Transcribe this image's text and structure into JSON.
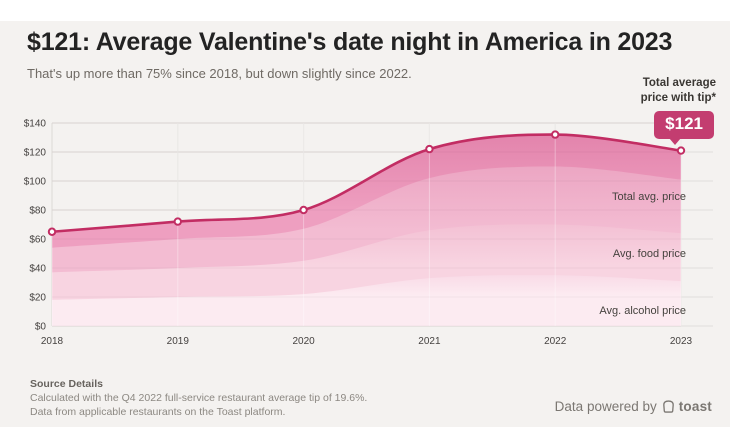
{
  "header": {
    "title": "$121: Average Valentine's date night in America in 2023",
    "subtitle": "That's up more than 75% since 2018, but down slightly since 2022.",
    "callout_label": "Total average price with tip*",
    "callout_value": "$121"
  },
  "chart_data": {
    "type": "area",
    "x": [
      "2018",
      "2019",
      "2020",
      "2021",
      "2022",
      "2023"
    ],
    "series": [
      {
        "name": "Total average price with tip",
        "values": [
          65,
          72,
          80,
          122,
          132,
          121
        ],
        "markers": true
      },
      {
        "name": "Total avg. price",
        "values": [
          54,
          60,
          67,
          102,
          110,
          101
        ]
      },
      {
        "name": "Avg. food price",
        "values": [
          37,
          40,
          45,
          66,
          70,
          64
        ]
      },
      {
        "name": "Avg. alcohol price",
        "values": [
          18,
          20,
          22,
          33,
          35,
          31
        ]
      }
    ],
    "title": "$121: Average Valentine's date night in America in 2023",
    "xlabel": "",
    "ylabel": "",
    "ylim": [
      0,
      140
    ],
    "ytick_step": 20,
    "ytick_prefix": "$",
    "grid": true,
    "legend_position": "inside-right"
  },
  "colors": {
    "accent_line": "#c22d63",
    "badge": "#c33d70",
    "card_background": "#f4f2f0",
    "grid": "#e1dedb",
    "axis": "#c9c5c1",
    "marker_fill": "#ffffff",
    "bands": [
      {
        "top": "#e384ac",
        "bottom": "#ee9fc0"
      },
      {
        "top": "#eca6c3",
        "bottom": "#f3bcd2"
      },
      {
        "top": "#f3c1d4",
        "bottom": "#f8d4e1"
      },
      {
        "top": "#f9dbe7",
        "bottom": "#fcebf1"
      }
    ]
  },
  "footer": {
    "source_heading": "Source Details",
    "line1": "Calculated with the Q4 2022 full-service restaurant average tip of 19.6%.",
    "line2": "Data from applicable restaurants on the Toast platform.",
    "powered_by": "Data powered by",
    "brand": "toast"
  }
}
